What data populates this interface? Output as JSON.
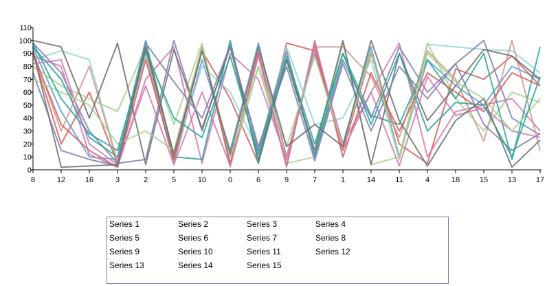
{
  "chart_data": {
    "type": "line",
    "categories": [
      "8",
      "12",
      "16",
      "3",
      "2",
      "5",
      "10",
      "0",
      "6",
      "9",
      "7",
      "1",
      "14",
      "11",
      "4",
      "18",
      "15",
      "13",
      "17"
    ],
    "ylim": [
      0,
      110
    ],
    "y_ticks": [
      "0",
      "10",
      "20",
      "30",
      "40",
      "50",
      "60",
      "70",
      "80",
      "90",
      "100",
      "110"
    ],
    "grid": false,
    "legend_position": "bottom",
    "series": [
      {
        "name": "Series 1",
        "color": "#5b9bd5",
        "values": [
          95,
          45,
          10,
          8,
          90,
          5,
          85,
          15,
          98,
          10,
          90,
          20,
          95,
          10,
          85,
          65,
          50,
          80,
          70
        ]
      },
      {
        "name": "Series 2",
        "color": "#d85a5a",
        "values": [
          90,
          20,
          60,
          5,
          95,
          8,
          92,
          55,
          5,
          98,
          92,
          15,
          90,
          20,
          5,
          78,
          70,
          88,
          65
        ]
      },
      {
        "name": "Series 3",
        "color": "#91d5d5",
        "values": [
          85,
          92,
          85,
          6,
          88,
          10,
          80,
          60,
          15,
          95,
          35,
          40,
          85,
          8,
          97,
          95,
          93,
          92,
          75
        ]
      },
      {
        "name": "Series 4",
        "color": "#a8d08d",
        "values": [
          80,
          65,
          55,
          45,
          95,
          35,
          98,
          2,
          80,
          5,
          10,
          98,
          4,
          10,
          98,
          55,
          30,
          60,
          52
        ]
      },
      {
        "name": "Series 5",
        "color": "#d477b3",
        "values": [
          88,
          80,
          12,
          2,
          70,
          95,
          5,
          90,
          70,
          8,
          95,
          20,
          60,
          98,
          10,
          45,
          50,
          55,
          30
        ]
      },
      {
        "name": "Series 6",
        "color": "#7b7fb3",
        "values": [
          98,
          75,
          30,
          5,
          8,
          100,
          30,
          97,
          15,
          92,
          10,
          85,
          40,
          95,
          60,
          82,
          100,
          40,
          27
        ]
      },
      {
        "name": "Series 7",
        "color": "#26a69a",
        "values": [
          95,
          70,
          25,
          10,
          100,
          10,
          8,
          100,
          5,
          85,
          12,
          90,
          42,
          35,
          85,
          55,
          90,
          8,
          95
        ]
      },
      {
        "name": "Series 8",
        "color": "#c79a8a",
        "values": [
          92,
          30,
          80,
          6,
          92,
          5,
          95,
          4,
          92,
          10,
          95,
          95,
          72,
          25,
          92,
          70,
          22,
          100,
          15
        ]
      },
      {
        "name": "Series 9",
        "color": "#d85a5a",
        "values": [
          90,
          35,
          15,
          2,
          85,
          8,
          95,
          5,
          90,
          3,
          98,
          10,
          75,
          30,
          75,
          60,
          45,
          75,
          65
        ]
      },
      {
        "name": "Series 10",
        "color": "#6f6f6f",
        "values": [
          100,
          95,
          40,
          98,
          4,
          93,
          32,
          95,
          8,
          85,
          15,
          100,
          4,
          90,
          38,
          65,
          93,
          88,
          70
        ]
      },
      {
        "name": "Series 11",
        "color": "#d477b3",
        "values": [
          82,
          85,
          20,
          4,
          65,
          4,
          60,
          3,
          88,
          2,
          100,
          15,
          60,
          3,
          72,
          42,
          48,
          30,
          25
        ]
      },
      {
        "name": "Series 12",
        "color": "#7b7fb3",
        "values": [
          75,
          15,
          8,
          3,
          98,
          68,
          40,
          96,
          18,
          80,
          7,
          82,
          30,
          80,
          55,
          82,
          35,
          15,
          28
        ]
      },
      {
        "name": "Series 13",
        "color": "#a8d08d",
        "values": [
          70,
          60,
          50,
          20,
          30,
          15,
          95,
          10,
          80,
          18,
          88,
          18,
          92,
          8,
          90,
          68,
          55,
          30,
          55
        ]
      },
      {
        "name": "Series 14",
        "color": "#26a69a",
        "values": [
          98,
          55,
          28,
          15,
          92,
          40,
          25,
          88,
          12,
          88,
          20,
          90,
          35,
          90,
          30,
          52,
          50,
          10,
          72
        ]
      },
      {
        "name": "Series 15",
        "color": "#6f6f6f",
        "values": [
          92,
          2,
          3,
          4,
          95,
          12,
          92,
          12,
          95,
          18,
          35,
          18,
          100,
          38,
          3,
          38,
          55,
          2,
          23
        ]
      }
    ]
  }
}
